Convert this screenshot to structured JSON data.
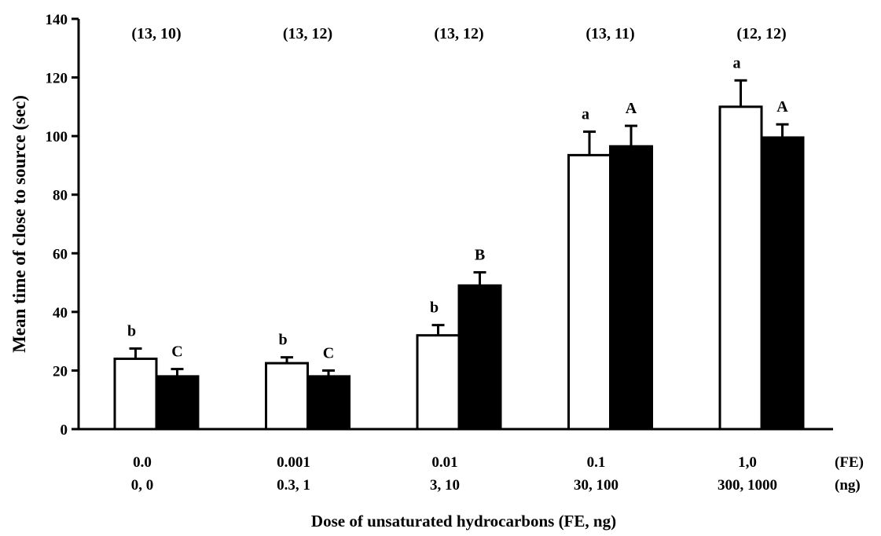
{
  "chart_data": {
    "type": "bar",
    "title": "",
    "ylabel": "Mean time of close to source (sec)",
    "xlabel": "Dose of unsaturated hydrocarbons (FE, ng)",
    "ylim": [
      0,
      140
    ],
    "yticks": [
      0,
      20,
      40,
      60,
      80,
      100,
      120,
      140
    ],
    "grid": false,
    "legend": "none",
    "row_units": [
      "(FE)",
      "(ng)"
    ],
    "categories": [
      {
        "fe": "0.0",
        "ng": "0, 0",
        "n": "(13, 10)"
      },
      {
        "fe": "0.001",
        "ng": "0.3, 1",
        "n": "(13, 12)"
      },
      {
        "fe": "0.01",
        "ng": "3, 10",
        "n": "(13, 12)"
      },
      {
        "fe": "0.1",
        "ng": "30, 100",
        "n": "(13, 11)"
      },
      {
        "fe": "1,0",
        "ng": "300, 1000",
        "n": "(12, 12)"
      }
    ],
    "series": [
      {
        "fill": "#ffffff",
        "values": [
          24,
          22.5,
          32,
          93.5,
          110
        ],
        "errors": [
          3.5,
          2,
          3.5,
          8,
          9
        ],
        "letters": [
          "b",
          "b",
          "b",
          "a",
          "a"
        ]
      },
      {
        "fill": "#000000",
        "values": [
          18,
          18,
          49,
          96.5,
          99.5
        ],
        "errors": [
          2.5,
          2,
          4.5,
          7,
          4.5
        ],
        "letters": [
          "C",
          "C",
          "B",
          "A",
          "A"
        ]
      }
    ]
  }
}
